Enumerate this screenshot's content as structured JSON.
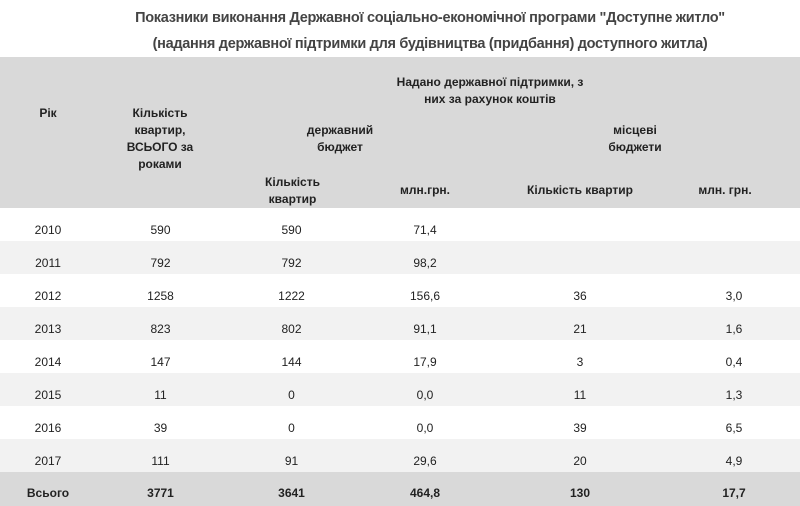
{
  "title": {
    "line1": "Показники виконання Державної соціально-економічної програми \"Доступне житло\"",
    "line2": "(надання державної підтримки для будівництва (придбання) доступного житла)"
  },
  "header": {
    "year": "Рік",
    "total_apartments": "Кількість квартир, ВСЬОГО за роками",
    "support_group": "Надано державної підтримки, з них за рахунок коштів",
    "state_budget": "державний бюджет",
    "local_budgets": "місцеві бюджети",
    "state_count": "Кількість квартир",
    "state_mln": "млн.грн.",
    "local_count": "Кількість квартир",
    "local_mln": "млн. грн."
  },
  "rows": [
    [
      "2010",
      "590",
      "590",
      "71,4",
      "",
      ""
    ],
    [
      "2011",
      "792",
      "792",
      "98,2",
      "",
      ""
    ],
    [
      "2012",
      "1258",
      "1222",
      "156,6",
      "36",
      "3,0"
    ],
    [
      "2013",
      "823",
      "802",
      "91,1",
      "21",
      "1,6"
    ],
    [
      "2014",
      "147",
      "144",
      "17,9",
      "3",
      "0,4"
    ],
    [
      "2015",
      "11",
      "0",
      "0,0",
      "11",
      "1,3"
    ],
    [
      "2016",
      "39",
      "0",
      "0,0",
      "39",
      "6,5"
    ],
    [
      "2017",
      "111",
      "91",
      "29,6",
      "20",
      "4,9"
    ]
  ],
  "total": [
    "Всього",
    "3771",
    "3641",
    "464,8",
    "130",
    "17,7"
  ]
}
